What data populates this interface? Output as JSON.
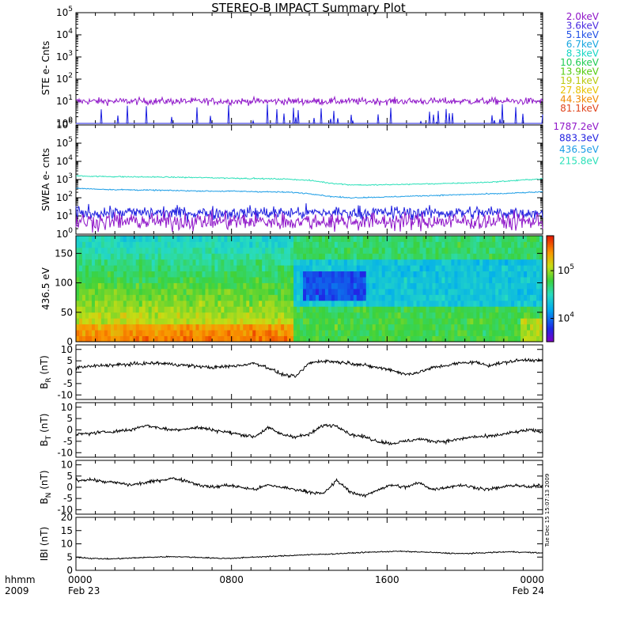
{
  "chart_data": {
    "title": "STEREO-B IMPACT Summary Plot",
    "type": "line",
    "panels": [
      {
        "id": "ste",
        "type": "line",
        "ylabel": "STE e- Cnts",
        "yscale": "log",
        "ylim_exp": [
          0,
          5
        ],
        "tick_exponents": [
          "0",
          "1",
          "2",
          "3",
          "4",
          "5"
        ],
        "series": [
          {
            "name": "2.0keV",
            "color": "#8f16c9",
            "level": 10,
            "noise": 0.15
          },
          {
            "name": "3.6keV",
            "color": "#1c1fe0",
            "level": 1,
            "spiky": true
          }
        ]
      },
      {
        "id": "swea",
        "type": "line",
        "ylabel": "SWEA e- cnts",
        "yscale": "log",
        "ylim_exp": [
          0,
          6
        ],
        "tick_exponents": [
          "0",
          "1",
          "2",
          "3",
          "4",
          "5",
          "6"
        ],
        "series": [
          {
            "name": "215.8eV",
            "color": "#2ce0b9",
            "values": [
              1600,
              1500,
              1450,
              1400,
              1380,
              1350,
              1300,
              1250,
              1200,
              1150,
              1100,
              1050,
              900,
              650,
              520,
              500,
              520,
              550,
              580,
              600,
              650,
              700,
              800,
              950,
              1100
            ]
          },
          {
            "name": "436.5eV",
            "color": "#1e9ee6",
            "values": [
              330,
              300,
              280,
              270,
              260,
              250,
              240,
              230,
              230,
              220,
              210,
              200,
              170,
              120,
              100,
              105,
              110,
              120,
              130,
              140,
              150,
              160,
              170,
              190,
              210
            ]
          },
          {
            "name": "883.3eV",
            "color": "#1f1fe0",
            "level": 15,
            "noise": 0.35
          },
          {
            "name": "1787.2eV",
            "color": "#8f16c9",
            "level": 5,
            "noise": 0.45
          }
        ]
      },
      {
        "id": "pad",
        "type": "heatmap",
        "ylabel": "436.5 eV",
        "ylim": [
          0,
          180
        ],
        "yticks": [
          "0",
          "50",
          "100",
          "150"
        ],
        "colorbar": {
          "ticks": [
            "10",
            "10"
          ],
          "tick_exponents": [
            "4",
            "5"
          ]
        }
      },
      {
        "id": "br",
        "type": "line",
        "ylabel": "BR (nT)",
        "ylabel_main": "B",
        "ylabel_sub": "R",
        "ylabel_unit": " (nT)",
        "ylim": [
          -12,
          12
        ],
        "yticks": [
          "-10",
          "-5",
          "0",
          "5",
          "10"
        ],
        "values": [
          2,
          2.5,
          3,
          3.2,
          3.5,
          3.8,
          4,
          3.5,
          3,
          2.5,
          2,
          2.5,
          3,
          4,
          2,
          -1,
          -2,
          4,
          5,
          4.5,
          4,
          3,
          2,
          1,
          -1,
          0,
          2,
          3,
          4,
          4.5,
          3,
          4,
          5,
          5.5,
          5
        ]
      },
      {
        "id": "bt",
        "type": "line",
        "ylabel": "BT (nT)",
        "ylabel_main": "B",
        "ylabel_sub": "T",
        "ylabel_unit": " (nT)",
        "ylim": [
          -12,
          12
        ],
        "yticks": [
          "-10",
          "-5",
          "0",
          "5",
          "10"
        ],
        "values": [
          -2,
          -1.5,
          -1,
          -0.5,
          0,
          2,
          1,
          0,
          0.5,
          1,
          0,
          -1,
          -2,
          -3,
          1,
          -2,
          -3,
          -2,
          2,
          2,
          -2,
          -3,
          -5,
          -6,
          -5,
          -4,
          -5,
          -5,
          -4,
          -3,
          -3,
          -2,
          -1,
          0,
          -1
        ]
      },
      {
        "id": "bn",
        "type": "line",
        "ylabel": "BN (nT)",
        "ylabel_main": "B",
        "ylabel_sub": "N",
        "ylabel_unit": " (nT)",
        "ylim": [
          -12,
          12
        ],
        "yticks": [
          "-10",
          "-5",
          "0",
          "5",
          "10"
        ],
        "values": [
          3,
          3.5,
          2.5,
          2,
          1,
          2,
          3,
          4,
          3,
          1,
          0,
          1,
          0,
          -1,
          1,
          0,
          -1,
          -2,
          -3,
          3,
          -2,
          -4,
          -1,
          1,
          0,
          2,
          -1,
          0,
          1,
          0,
          -1,
          0,
          1,
          0,
          1
        ]
      },
      {
        "id": "b",
        "type": "line",
        "ylabel": "|B| (nT)",
        "ylabel_main": "IBI",
        "ylabel_sub": "",
        "ylabel_unit": " (nT)",
        "ylim": [
          0,
          20
        ],
        "yticks": [
          "0",
          "5",
          "10",
          "15",
          "20"
        ],
        "values": [
          5,
          4.5,
          4.3,
          4.5,
          4.8,
          5,
          5.2,
          5,
          4.8,
          4.5,
          4.6,
          5,
          5.2,
          5.5,
          5.8,
          6,
          6.2,
          6.5,
          6.8,
          7,
          7.2,
          7,
          6.8,
          6.5,
          6.3,
          6.5,
          6.8,
          7,
          6.8,
          6.5
        ]
      }
    ],
    "xaxis": {
      "row1_label": "hhmm",
      "row2_label": "2009",
      "ticks": [
        {
          "time": "0000",
          "date": "Feb 23"
        },
        {
          "time": "0800",
          "date": ""
        },
        {
          "time": "1600",
          "date": ""
        },
        {
          "time": "0000",
          "date": "Feb 24"
        }
      ]
    },
    "legend": [
      {
        "label": "2.0keV",
        "color": "#8f16c9"
      },
      {
        "label": "3.6keV",
        "color": "#4a2be0"
      },
      {
        "label": "5.1keV",
        "color": "#1f4fe6"
      },
      {
        "label": "6.7keV",
        "color": "#19a6e0"
      },
      {
        "label": "8.3keV",
        "color": "#16d6c4"
      },
      {
        "label": "10.6keV",
        "color": "#22cc55"
      },
      {
        "label": "13.9keV",
        "color": "#55cc11"
      },
      {
        "label": "19.1keV",
        "color": "#b9c90e"
      },
      {
        "label": "27.8keV",
        "color": "#e6c200"
      },
      {
        "label": "44.3keV",
        "color": "#f08a00"
      },
      {
        "label": "81.1keV",
        "color": "#e0441c"
      },
      {
        "label": "1787.2eV",
        "color": "#8f16c9"
      },
      {
        "label": "883.3eV",
        "color": "#1f1fe0"
      },
      {
        "label": "436.5eV",
        "color": "#1e9ee6"
      },
      {
        "label": "215.8eV",
        "color": "#2ce0b9"
      }
    ],
    "stamp": "Tue Dec 15 15:07:13 2009"
  }
}
